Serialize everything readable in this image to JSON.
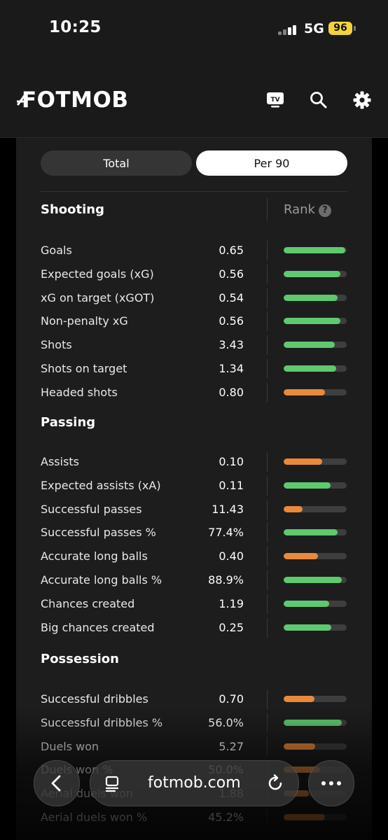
{
  "status_bar": {
    "time": "10:25",
    "network": "5G",
    "battery": "96"
  },
  "header": {
    "logo": "FOTMOB",
    "icons": [
      "tv-icon",
      "search-icon",
      "gear-icon"
    ],
    "tv_label": "TV"
  },
  "toggle": {
    "total_label": "Total",
    "per90_label": "Per 90",
    "selected": "Per 90"
  },
  "rank_label": "Rank",
  "help_symbol": "?",
  "colors": {
    "good": "#5fc96f",
    "average": "#e8893c",
    "track": "#3e3e3e"
  },
  "sections": [
    {
      "title": "Shooting",
      "rows": [
        {
          "label": "Goals",
          "value": "0.65",
          "rank": 0.98,
          "color": "good"
        },
        {
          "label": "Expected goals (xG)",
          "value": "0.56",
          "rank": 0.9,
          "color": "good"
        },
        {
          "label": "xG on target (xGOT)",
          "value": "0.54",
          "rank": 0.85,
          "color": "good"
        },
        {
          "label": "Non-penalty xG",
          "value": "0.56",
          "rank": 0.9,
          "color": "good"
        },
        {
          "label": "Shots",
          "value": "3.43",
          "rank": 0.81,
          "color": "good"
        },
        {
          "label": "Shots on target",
          "value": "1.34",
          "rank": 0.83,
          "color": "good"
        },
        {
          "label": "Headed shots",
          "value": "0.80",
          "rank": 0.65,
          "color": "average"
        }
      ]
    },
    {
      "title": "Passing",
      "rows": [
        {
          "label": "Assists",
          "value": "0.10",
          "rank": 0.61,
          "color": "average"
        },
        {
          "label": "Expected assists (xA)",
          "value": "0.11",
          "rank": 0.74,
          "color": "good"
        },
        {
          "label": "Successful passes",
          "value": "11.43",
          "rank": 0.3,
          "color": "average"
        },
        {
          "label": "Successful passes %",
          "value": "77.4%",
          "rank": 0.86,
          "color": "good"
        },
        {
          "label": "Accurate long balls",
          "value": "0.40",
          "rank": 0.54,
          "color": "average"
        },
        {
          "label": "Accurate long balls %",
          "value": "88.9%",
          "rank": 0.92,
          "color": "good"
        },
        {
          "label": "Chances created",
          "value": "1.19",
          "rank": 0.72,
          "color": "good"
        },
        {
          "label": "Big chances created",
          "value": "0.25",
          "rank": 0.75,
          "color": "good"
        }
      ]
    },
    {
      "title": "Possession",
      "rows": [
        {
          "label": "Successful dribbles",
          "value": "0.70",
          "rank": 0.49,
          "color": "average"
        },
        {
          "label": "Successful dribbles %",
          "value": "56.0%",
          "rank": 0.92,
          "color": "good"
        },
        {
          "label": "Duels won",
          "value": "5.27",
          "rank": 0.5,
          "color": "average"
        },
        {
          "label": "Duels won %",
          "value": "50.0%",
          "rank": 0.58,
          "color": "average"
        },
        {
          "label": "Aerial duels won",
          "value": "1.88",
          "rank": 0.4,
          "color": "average"
        },
        {
          "label": "Aerial duels won %",
          "value": "45.2%",
          "rank": 0.66,
          "color": "average"
        }
      ]
    }
  ],
  "browser": {
    "url": "fotmob.com"
  }
}
